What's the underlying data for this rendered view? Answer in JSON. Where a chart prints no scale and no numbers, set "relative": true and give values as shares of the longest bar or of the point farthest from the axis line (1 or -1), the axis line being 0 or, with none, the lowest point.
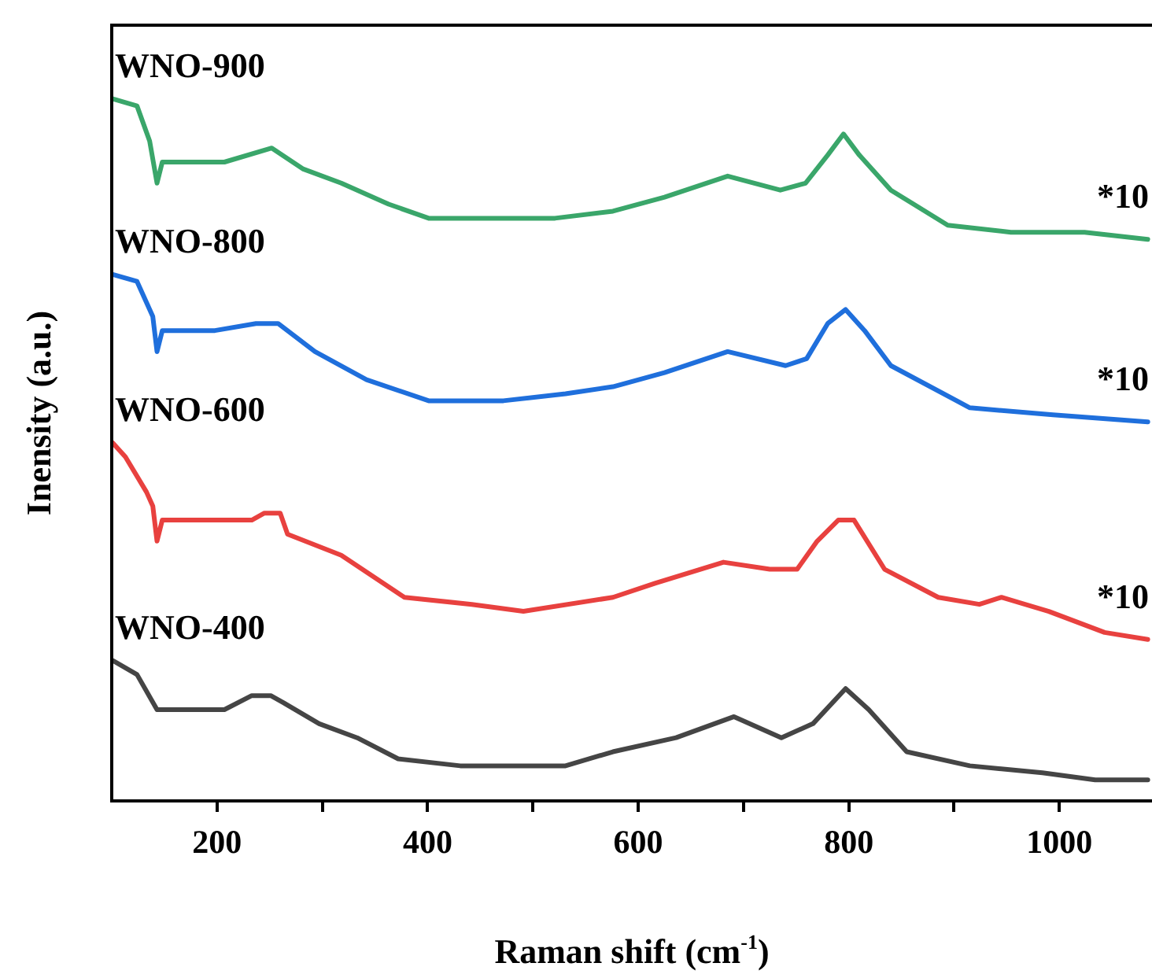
{
  "chart_data": {
    "type": "line",
    "relative": true,
    "xlabel": "Raman shift (cm$^{-1}$)",
    "ylabel": "Inensity (a.u.)",
    "xlim": [
      100,
      1088
    ],
    "xticks": [
      200,
      {
        "value": 300,
        "label": null
      },
      400,
      {
        "value": 500,
        "label": null
      },
      600,
      {
        "value": 700,
        "label": null
      },
      800,
      {
        "value": 900,
        "label": null
      },
      1000
    ],
    "grid": false,
    "legend": false,
    "marker": "none",
    "line_style": "solid",
    "annotations": [
      "*10",
      "*10",
      "*10"
    ],
    "series": [
      {
        "name": "WNO-900",
        "color": "#3aa66a",
        "x": [
          101,
          124,
          136,
          143,
          148,
          207,
          252,
          282,
          318,
          363,
          401,
          452,
          521,
          576,
          625,
          685,
          735,
          759,
          780,
          795,
          810,
          840,
          894,
          954,
          1024,
          1084
        ],
        "values": [
          1.0,
          0.99,
          0.94,
          0.88,
          0.91,
          0.91,
          0.93,
          0.9,
          0.88,
          0.85,
          0.83,
          0.83,
          0.83,
          0.84,
          0.86,
          0.89,
          0.87,
          0.88,
          0.92,
          0.95,
          0.92,
          0.87,
          0.82,
          0.81,
          0.81,
          0.8
        ]
      },
      {
        "name": "WNO-800",
        "color": "#1f6fdc",
        "x": [
          101,
          124,
          139,
          143,
          148,
          198,
          237,
          258,
          293,
          342,
          401,
          472,
          531,
          576,
          625,
          685,
          740,
          760,
          780,
          797,
          815,
          840,
          915,
          994,
          1084
        ],
        "values": [
          0.75,
          0.74,
          0.69,
          0.64,
          0.67,
          0.67,
          0.68,
          0.68,
          0.64,
          0.6,
          0.57,
          0.57,
          0.58,
          0.59,
          0.61,
          0.64,
          0.62,
          0.63,
          0.68,
          0.7,
          0.67,
          0.62,
          0.56,
          0.55,
          0.54
        ]
      },
      {
        "name": "WNO-600",
        "color": "#e8413f",
        "x": [
          101,
          113,
          133,
          139,
          143,
          148,
          233,
          245,
          260,
          267,
          318,
          378,
          442,
          491,
          576,
          616,
          681,
          725,
          751,
          770,
          790,
          805,
          834,
          885,
          924,
          945,
          990,
          1043,
          1084
        ],
        "values": [
          0.51,
          0.49,
          0.44,
          0.42,
          0.37,
          0.4,
          0.4,
          0.41,
          0.41,
          0.38,
          0.35,
          0.29,
          0.28,
          0.27,
          0.29,
          0.31,
          0.34,
          0.33,
          0.33,
          0.37,
          0.4,
          0.4,
          0.33,
          0.29,
          0.28,
          0.29,
          0.27,
          0.24,
          0.23
        ]
      },
      {
        "name": "WNO-400",
        "color": "#454545",
        "x": [
          101,
          124,
          143,
          154,
          207,
          233,
          251,
          263,
          297,
          333,
          372,
          431,
          482,
          531,
          576,
          636,
          691,
          736,
          766,
          797,
          819,
          855,
          915,
          984,
          1034,
          1084
        ],
        "values": [
          0.2,
          0.18,
          0.13,
          0.13,
          0.13,
          0.15,
          0.15,
          0.14,
          0.11,
          0.09,
          0.06,
          0.05,
          0.05,
          0.05,
          0.07,
          0.09,
          0.12,
          0.09,
          0.11,
          0.16,
          0.13,
          0.07,
          0.05,
          0.04,
          0.03,
          0.03
        ]
      }
    ]
  }
}
